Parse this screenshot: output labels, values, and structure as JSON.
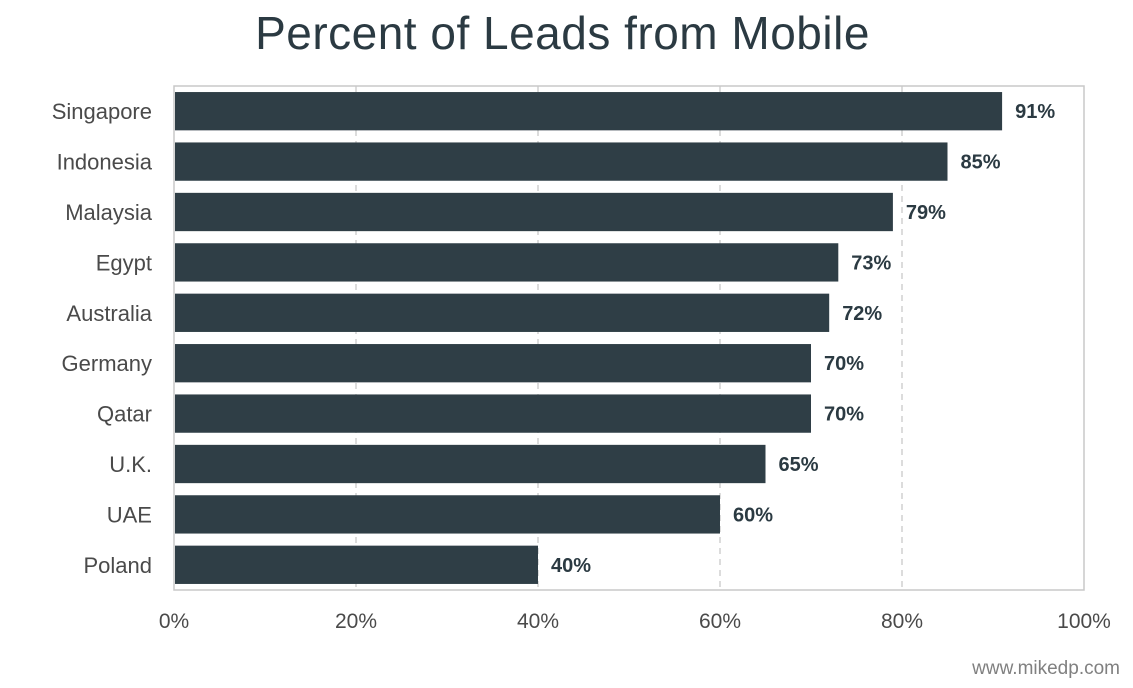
{
  "chart_data": {
    "type": "bar",
    "orientation": "horizontal",
    "title": "Percent of Leads from Mobile",
    "categories": [
      "Singapore",
      "Indonesia",
      "Malaysia",
      "Egypt",
      "Australia",
      "Germany",
      "Qatar",
      "U.K.",
      "UAE",
      "Poland"
    ],
    "values": [
      91,
      85,
      79,
      73,
      72,
      70,
      70,
      65,
      60,
      40
    ],
    "value_labels": [
      "91%",
      "85%",
      "79%",
      "73%",
      "72%",
      "70%",
      "70%",
      "65%",
      "60%",
      "40%"
    ],
    "xlim": [
      0,
      100
    ],
    "x_ticks": [
      0,
      20,
      40,
      60,
      80,
      100
    ],
    "x_tick_labels": [
      "0%",
      "20%",
      "40%",
      "60%",
      "80%",
      "100%"
    ],
    "xlabel": "",
    "ylabel": "",
    "grid": "vertical-dashed",
    "legend": "none"
  },
  "colors": {
    "bar": "#2f3e46",
    "title": "#2b3a42",
    "axis_text": "#4a4a4a",
    "value_text": "#2b3a42",
    "grid": "#d0d0d0",
    "frame": "#c8c8c8"
  },
  "footer": {
    "watermark": "www.mikedp.com"
  }
}
